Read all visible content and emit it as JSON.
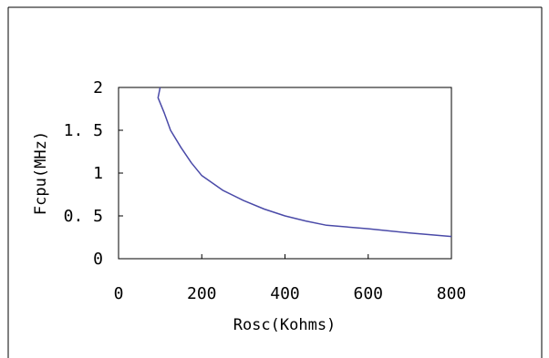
{
  "chart_data": {
    "type": "line",
    "title": "",
    "xlabel": "Rosc(Kohms)",
    "ylabel": "Fcpu(MHz)",
    "xlim": [
      0,
      800
    ],
    "ylim": [
      0,
      2
    ],
    "x_ticks": [
      "0",
      "200",
      "400",
      "600",
      "800"
    ],
    "y_ticks": [
      "0",
      "0. 5",
      "1",
      "1. 5",
      "2"
    ],
    "grid": false,
    "legend": "none",
    "series": [
      {
        "color": "#4a4aa8",
        "x": [
          100,
          95,
          110,
          125,
          150,
          175,
          200,
          250,
          300,
          350,
          400,
          450,
          500,
          600,
          700,
          800
        ],
        "y": [
          2.0,
          1.88,
          1.7,
          1.5,
          1.3,
          1.12,
          0.97,
          0.8,
          0.68,
          0.58,
          0.5,
          0.44,
          0.39,
          0.35,
          0.3,
          0.26
        ]
      }
    ]
  }
}
